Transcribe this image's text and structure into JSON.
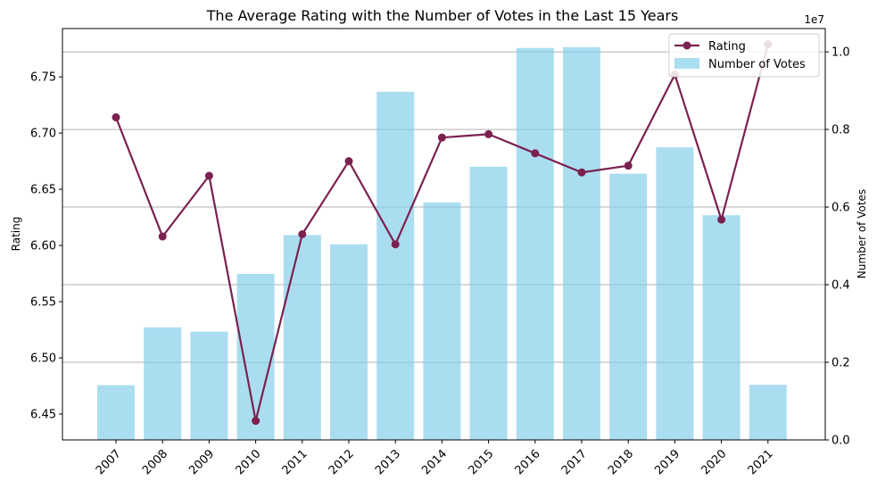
{
  "chart_data": {
    "type": "bar+line",
    "title": "The Average Rating with the Number of Votes in the Last 15 Years",
    "xlabel": "",
    "categories": [
      "2007",
      "2008",
      "2009",
      "2010",
      "2011",
      "2012",
      "2013",
      "2014",
      "2015",
      "2016",
      "2017",
      "2018",
      "2019",
      "2020",
      "2021"
    ],
    "series": [
      {
        "name": "Number of Votes",
        "type": "bar",
        "axis": "right",
        "color": "#87CEEB",
        "values": [
          1410000,
          2900000,
          2790000,
          4280000,
          5280000,
          5040000,
          8970000,
          6120000,
          7040000,
          10100000,
          10120000,
          6860000,
          7540000,
          5790000,
          1420000
        ]
      },
      {
        "name": "Rating",
        "type": "line",
        "axis": "left",
        "color": "#7B2150",
        "values": [
          6.714,
          6.608,
          6.662,
          6.444,
          6.61,
          6.675,
          6.601,
          6.696,
          6.699,
          6.682,
          6.665,
          6.671,
          6.752,
          6.623,
          6.779
        ]
      }
    ],
    "y_left": {
      "label": "Rating",
      "range": [
        6.427,
        6.793
      ],
      "ticks": [
        "6.45",
        "6.50",
        "6.55",
        "6.60",
        "6.65",
        "6.70",
        "6.75"
      ],
      "tick_values": [
        6.45,
        6.5,
        6.55,
        6.6,
        6.65,
        6.7,
        6.75
      ]
    },
    "y_right": {
      "label": "Number of Votes",
      "range": [
        0,
        10600000
      ],
      "multiplier": "1e7",
      "ticks": [
        "0.0",
        "0.2",
        "0.4",
        "0.6",
        "0.8",
        "1.0"
      ],
      "tick_values": [
        0,
        2000000,
        4000000,
        6000000,
        8000000,
        10000000
      ]
    },
    "grid": "horizontal, right axis",
    "legend": "top-right"
  }
}
